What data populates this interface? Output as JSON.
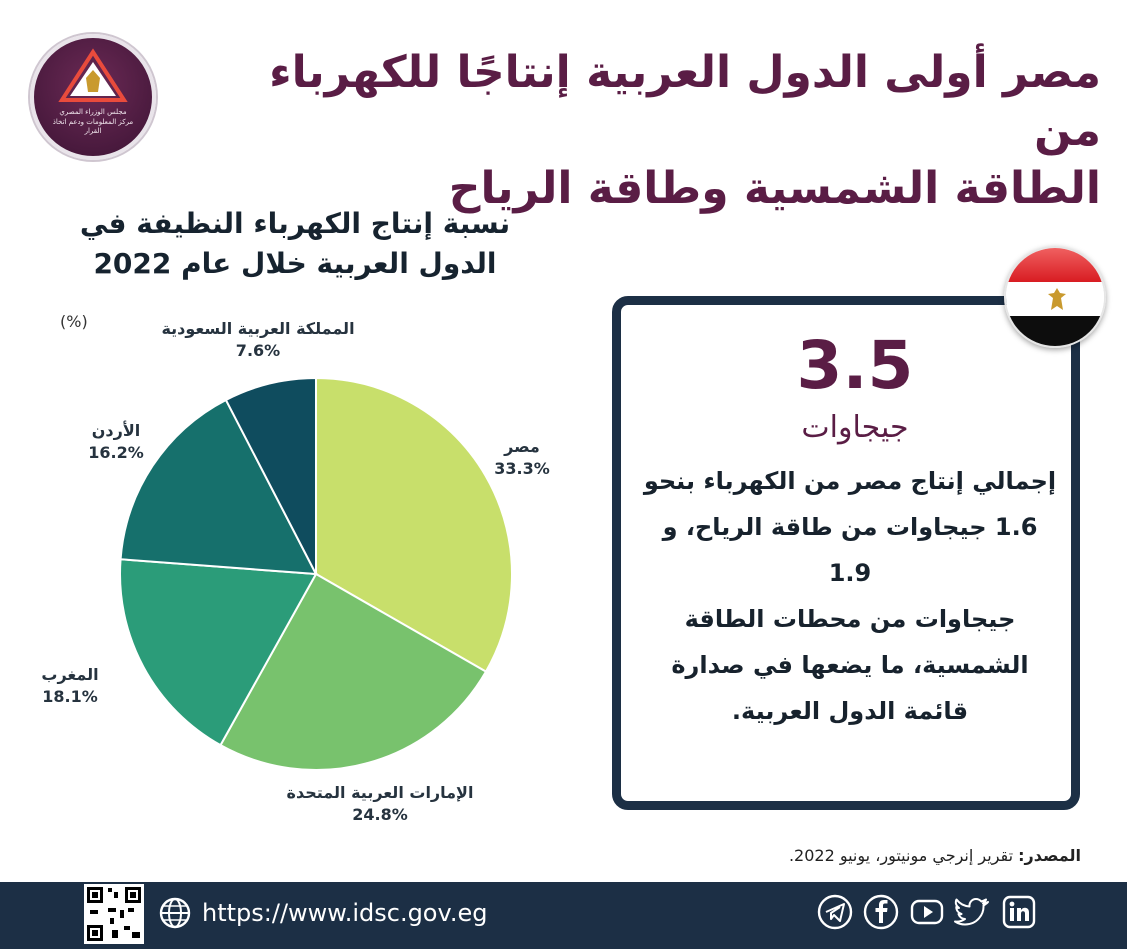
{
  "header": {
    "logo_line1": "مجلس الوزراء المصري",
    "logo_line2": "مركز المعلومات ودعم اتخاذ القرار",
    "headline_line1": "مصر أولى الدول العربية إنتاجًا للكهرباء من",
    "headline_line2": "الطاقة الشمسية وطاقة الرياح"
  },
  "chart_data": {
    "type": "pie",
    "title_line1": "نسبة  إنتاج الكهرباء النظيفة في",
    "title_line2": "الدول العربية خلال عام 2022",
    "unit": "(%)",
    "slices": [
      {
        "label": "مصر",
        "value": 33.3,
        "value_text": "33.3%",
        "color": "#c8df6b"
      },
      {
        "label": "الإمارات العربية المتحدة",
        "value": 24.8,
        "value_text": "24.8%",
        "color": "#78c26d"
      },
      {
        "label": "المغرب",
        "value": 18.1,
        "value_text": "18.1%",
        "color": "#2b9c79"
      },
      {
        "label": "الأردن",
        "value": 16.2,
        "value_text": "16.2%",
        "color": "#16706c"
      },
      {
        "label": "المملكة العربية السعودية",
        "value": 7.6,
        "value_text": "7.6%",
        "color": "#0f4c5e"
      }
    ]
  },
  "card": {
    "big_number": "3.5",
    "big_unit": "جيجاوات",
    "description_lines": [
      "إجمالي إنتاج مصر من الكهرباء بنحو",
      "1.6 جيجاوات من طاقة الرياح، و 1.9",
      "جيجاوات من  محطات الطاقة",
      "الشمسية،  ما يضعها في صدارة",
      "قائمة الدول العربية."
    ]
  },
  "source": {
    "label": "المصدر:",
    "text": " تقرير إنرجي مونيتور، يونيو 2022."
  },
  "footer": {
    "url": "https://www.idsc.gov.eg",
    "social": [
      "telegram-icon",
      "facebook-icon",
      "youtube-icon",
      "twitter-icon",
      "linkedin-icon"
    ]
  },
  "colors": {
    "headline": "#5a1d45",
    "footer": "#1c2f45",
    "card_border": "#1c2f45"
  }
}
